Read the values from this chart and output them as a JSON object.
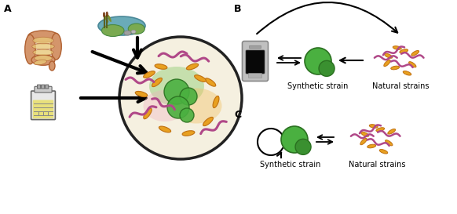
{
  "title_A": "A",
  "title_B": "B",
  "title_C": "C",
  "label_synthetic": "Synthetic strain",
  "label_natural": "Natural strains",
  "bg_color": "#ffffff",
  "gut_main": "#d4956b",
  "gut_inner": "#e8c87a",
  "gut_edge": "#b06030",
  "pond_water": "#6aabb8",
  "pond_land": "#7aaa50",
  "pond_edge": "#4a8a40",
  "pond_rock": "#aaaaaa",
  "bioreactor_frame": "#666666",
  "bioreactor_liquid": "#e8e070",
  "cell_green1": "#4ab040",
  "cell_green2": "#3a9030",
  "cell_edge": "#2a7020",
  "rod_color": "#e8a020",
  "rod_edge": "#c07010",
  "wavy_color": "#b04888",
  "arrow_color": "#111111",
  "eco_circle_bg": "#f5f0e0",
  "eco_green_patch": "#70c050",
  "eco_orange_patch": "#f0c060",
  "eco_pink_patch": "#f0b0c0",
  "font_size_label": 7,
  "font_size_panel": 9
}
